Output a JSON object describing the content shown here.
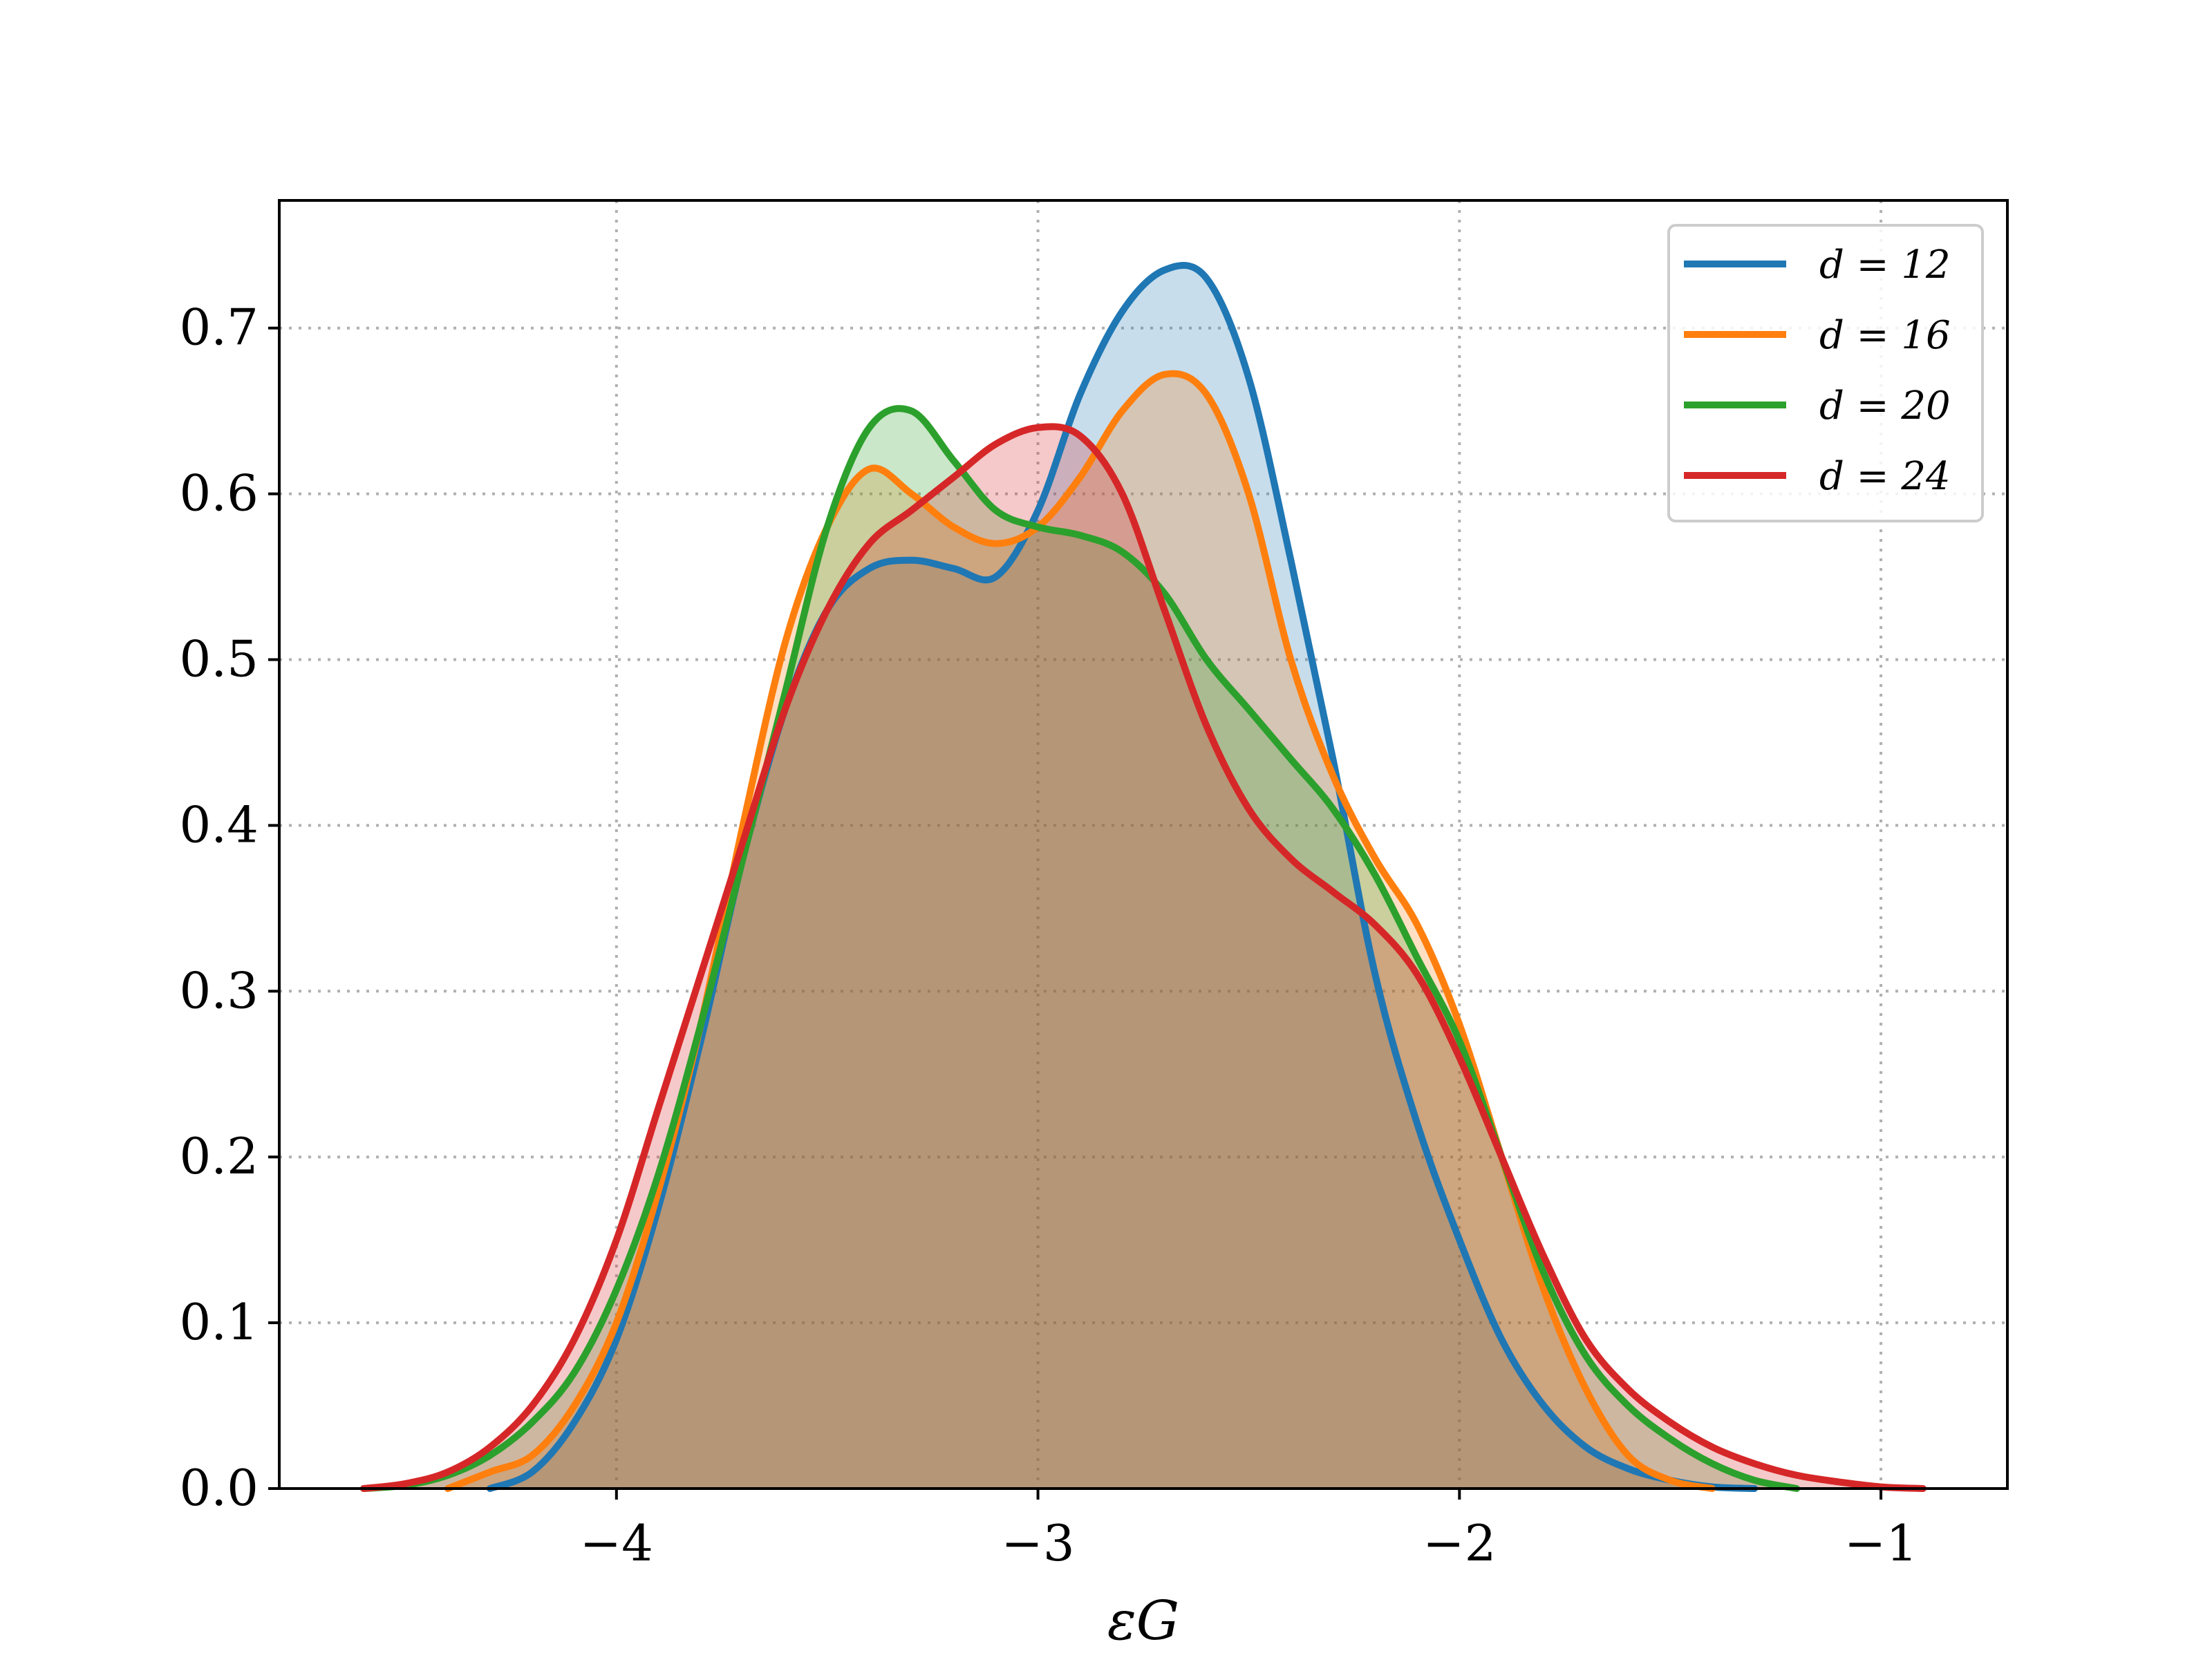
{
  "chart_data": {
    "type": "area",
    "title": "",
    "xlabel": "εG",
    "ylabel": "",
    "xlim": [
      -4.8,
      -0.7
    ],
    "ylim": [
      0.0,
      0.777
    ],
    "x_ticks": [
      -4,
      -3,
      -2,
      -1
    ],
    "x_tick_labels": [
      "−4",
      "−3",
      "−2",
      "−1"
    ],
    "y_ticks": [
      0.0,
      0.1,
      0.2,
      0.3,
      0.4,
      0.5,
      0.6,
      0.7
    ],
    "y_tick_labels": [
      "0.0",
      "0.1",
      "0.2",
      "0.3",
      "0.4",
      "0.5",
      "0.6",
      "0.7"
    ],
    "grid": true,
    "legend_position": "top-right",
    "series": [
      {
        "name": "d = 12",
        "color": "#1f77b4",
        "x": [
          -4.3,
          -4.2,
          -4.1,
          -4.0,
          -3.9,
          -3.8,
          -3.7,
          -3.6,
          -3.5,
          -3.4,
          -3.3,
          -3.2,
          -3.1,
          -3.0,
          -2.9,
          -2.8,
          -2.7,
          -2.6,
          -2.5,
          -2.4,
          -2.3,
          -2.2,
          -2.1,
          -2.0,
          -1.9,
          -1.8,
          -1.7,
          -1.6,
          -1.5,
          -1.4,
          -1.3
        ],
        "y": [
          0.0,
          0.01,
          0.04,
          0.09,
          0.17,
          0.27,
          0.38,
          0.47,
          0.53,
          0.555,
          0.56,
          0.555,
          0.55,
          0.59,
          0.66,
          0.71,
          0.735,
          0.73,
          0.67,
          0.56,
          0.44,
          0.31,
          0.22,
          0.15,
          0.09,
          0.05,
          0.025,
          0.012,
          0.005,
          0.001,
          0.0
        ]
      },
      {
        "name": "d = 16",
        "color": "#ff7f0e",
        "x": [
          -4.4,
          -4.3,
          -4.2,
          -4.1,
          -4.0,
          -3.9,
          -3.8,
          -3.7,
          -3.6,
          -3.5,
          -3.4,
          -3.3,
          -3.2,
          -3.1,
          -3.0,
          -2.9,
          -2.8,
          -2.7,
          -2.6,
          -2.5,
          -2.4,
          -2.3,
          -2.2,
          -2.1,
          -2.0,
          -1.9,
          -1.8,
          -1.7,
          -1.6,
          -1.5,
          -1.4
        ],
        "y": [
          0.0,
          0.01,
          0.02,
          0.05,
          0.1,
          0.18,
          0.28,
          0.4,
          0.51,
          0.58,
          0.615,
          0.6,
          0.58,
          0.57,
          0.58,
          0.61,
          0.65,
          0.672,
          0.66,
          0.6,
          0.5,
          0.43,
          0.38,
          0.34,
          0.28,
          0.2,
          0.12,
          0.06,
          0.02,
          0.005,
          0.0
        ]
      },
      {
        "name": "d = 20",
        "color": "#2ca02c",
        "x": [
          -4.6,
          -4.5,
          -4.4,
          -4.3,
          -4.2,
          -4.1,
          -4.0,
          -3.9,
          -3.8,
          -3.7,
          -3.6,
          -3.5,
          -3.4,
          -3.3,
          -3.2,
          -3.1,
          -3.0,
          -2.9,
          -2.8,
          -2.7,
          -2.6,
          -2.5,
          -2.4,
          -2.3,
          -2.2,
          -2.1,
          -2.0,
          -1.9,
          -1.8,
          -1.7,
          -1.6,
          -1.5,
          -1.4,
          -1.3,
          -1.2
        ],
        "y": [
          0.0,
          0.002,
          0.008,
          0.02,
          0.04,
          0.07,
          0.12,
          0.19,
          0.28,
          0.38,
          0.48,
          0.58,
          0.64,
          0.65,
          0.62,
          0.59,
          0.58,
          0.575,
          0.565,
          0.54,
          0.5,
          0.47,
          0.44,
          0.41,
          0.37,
          0.32,
          0.27,
          0.2,
          0.13,
          0.08,
          0.05,
          0.03,
          0.015,
          0.005,
          0.0
        ]
      },
      {
        "name": "d = 24",
        "color": "#d62728",
        "x": [
          -4.6,
          -4.5,
          -4.4,
          -4.3,
          -4.2,
          -4.1,
          -4.0,
          -3.9,
          -3.8,
          -3.7,
          -3.6,
          -3.5,
          -3.4,
          -3.3,
          -3.2,
          -3.1,
          -3.0,
          -2.9,
          -2.8,
          -2.7,
          -2.6,
          -2.5,
          -2.4,
          -2.3,
          -2.2,
          -2.1,
          -2.0,
          -1.9,
          -1.8,
          -1.7,
          -1.6,
          -1.5,
          -1.4,
          -1.3,
          -1.2,
          -1.1,
          -1.0,
          -0.9
        ],
        "y": [
          0.0,
          0.003,
          0.01,
          0.025,
          0.05,
          0.09,
          0.15,
          0.23,
          0.31,
          0.39,
          0.47,
          0.53,
          0.57,
          0.59,
          0.61,
          0.63,
          0.64,
          0.635,
          0.6,
          0.53,
          0.46,
          0.41,
          0.38,
          0.36,
          0.34,
          0.31,
          0.26,
          0.2,
          0.14,
          0.09,
          0.06,
          0.04,
          0.025,
          0.015,
          0.008,
          0.004,
          0.001,
          0.0
        ]
      }
    ]
  }
}
